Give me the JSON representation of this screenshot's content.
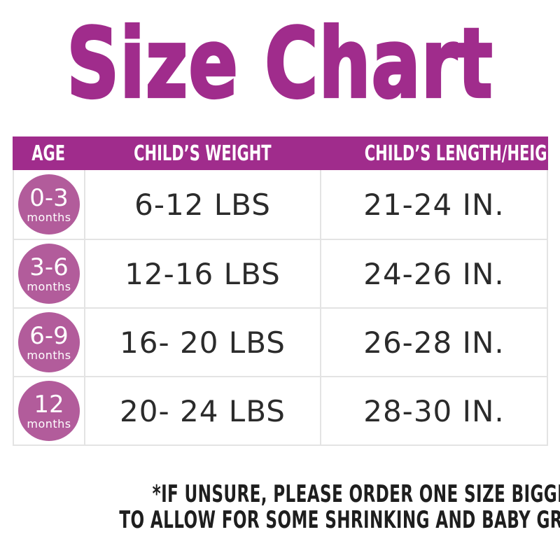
{
  "title": "Size Chart",
  "table": {
    "headers": [
      "AGE",
      "CHILD’S WEIGHT",
      "CHILD’S LENGTH/HEIGHT"
    ],
    "rows": [
      {
        "age_main": "0-3",
        "age_sub": "months",
        "weight": "6-12 LBS",
        "length": "21-24 IN."
      },
      {
        "age_main": "3-6",
        "age_sub": "months",
        "weight": "12-16 LBS",
        "length": "24-26 IN."
      },
      {
        "age_main": "6-9",
        "age_sub": "months",
        "weight": "16- 20 LBS",
        "length": "26-28 IN."
      },
      {
        "age_main": "12",
        "age_sub": "months",
        "weight": "20- 24 LBS",
        "length": "28-30 IN."
      }
    ]
  },
  "footnote": {
    "line1": "*IF UNSURE, PLEASE ORDER ONE SIZE BIGGER THAN WHAT YOU NEED",
    "line2": "TO ALLOW FOR SOME SHRINKING AND BABY GROWTH."
  },
  "colors": {
    "accent_magenta": "#A02C8C",
    "badge_mauve": "#B25C9B",
    "header_text": "#FFFFFF",
    "cell_text": "#2B2B2B",
    "grid_border": "#E3E3E3",
    "footnote_text": "#1E1E1E"
  },
  "chart_data": {
    "type": "table",
    "title": "Size Chart",
    "columns": [
      "AGE",
      "CHILD’S WEIGHT",
      "CHILD’S LENGTH/HEIGHT"
    ],
    "rows": [
      [
        "0-3 months",
        "6-12 LBS",
        "21-24 IN."
      ],
      [
        "3-6 months",
        "12-16 LBS",
        "24-26 IN."
      ],
      [
        "6-9 months",
        "16- 20 LBS",
        "26-28 IN."
      ],
      [
        "12 months",
        "20- 24 LBS",
        "28-30 IN."
      ]
    ],
    "footnote": "*IF UNSURE, PLEASE ORDER ONE SIZE BIGGER THAN WHAT YOU NEED TO ALLOW FOR SOME SHRINKING AND BABY GROWTH.",
    "layout": {
      "grid": true,
      "header_fill": "#A02C8C",
      "age_badges_fill": "#B25C9B"
    }
  }
}
